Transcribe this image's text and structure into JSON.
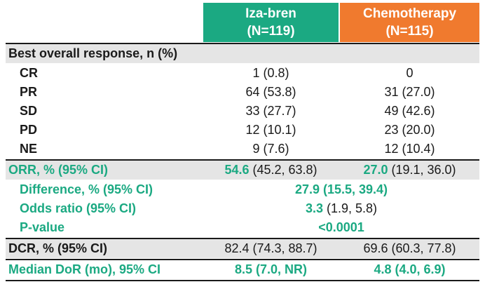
{
  "header": {
    "iza_name": "Iza-bren",
    "iza_n": "(N=119)",
    "chemo_name": "Chemotherapy",
    "chemo_n": "(N=115)"
  },
  "best_overall": {
    "title": "Best overall response, n (%)",
    "rows": [
      {
        "label": "CR",
        "iza": "1 (0.8)",
        "chemo": "0"
      },
      {
        "label": "PR",
        "iza": "64 (53.8)",
        "chemo": "31 (27.0)"
      },
      {
        "label": "SD",
        "iza": "33 (27.7)",
        "chemo": "49 (42.6)"
      },
      {
        "label": "PD",
        "iza": "12 (10.1)",
        "chemo": "23 (20.0)"
      },
      {
        "label": "NE",
        "iza": "9 (7.6)",
        "chemo": "12 (10.4)"
      }
    ]
  },
  "orr": {
    "label": "ORR, % (95% CI)",
    "iza_value": "54.6",
    "iza_ci": " (45.2, 63.8)",
    "chemo_value": "27.0",
    "chemo_ci": " (19.1, 36.0)"
  },
  "difference": {
    "label": "Difference, % (95% CI)",
    "value": "27.9",
    "ci": " (15.5, 39.4)"
  },
  "odds_ratio": {
    "label": "Odds ratio (95% CI)",
    "value": "3.3",
    "ci": " (1.9, 5.8)"
  },
  "p_value": {
    "label": "P-value",
    "value": "<0.0001"
  },
  "dcr": {
    "label": "DCR, % (95% CI)",
    "iza": "82.4 (74.3, 88.7)",
    "chemo": "69.6 (60.3, 77.8)"
  },
  "dor": {
    "label": "Median DoR (mo), 95% CI",
    "iza_value": "8.5",
    "iza_ci": " (7.0, NR)",
    "chemo_value": "4.8",
    "chemo_ci": " (4.0, 6.9)"
  },
  "colors": {
    "iza": "#1ba982",
    "chemo": "#f07a2e",
    "row_shade": "#e5e5e5",
    "teal_text": "#1ba982"
  }
}
